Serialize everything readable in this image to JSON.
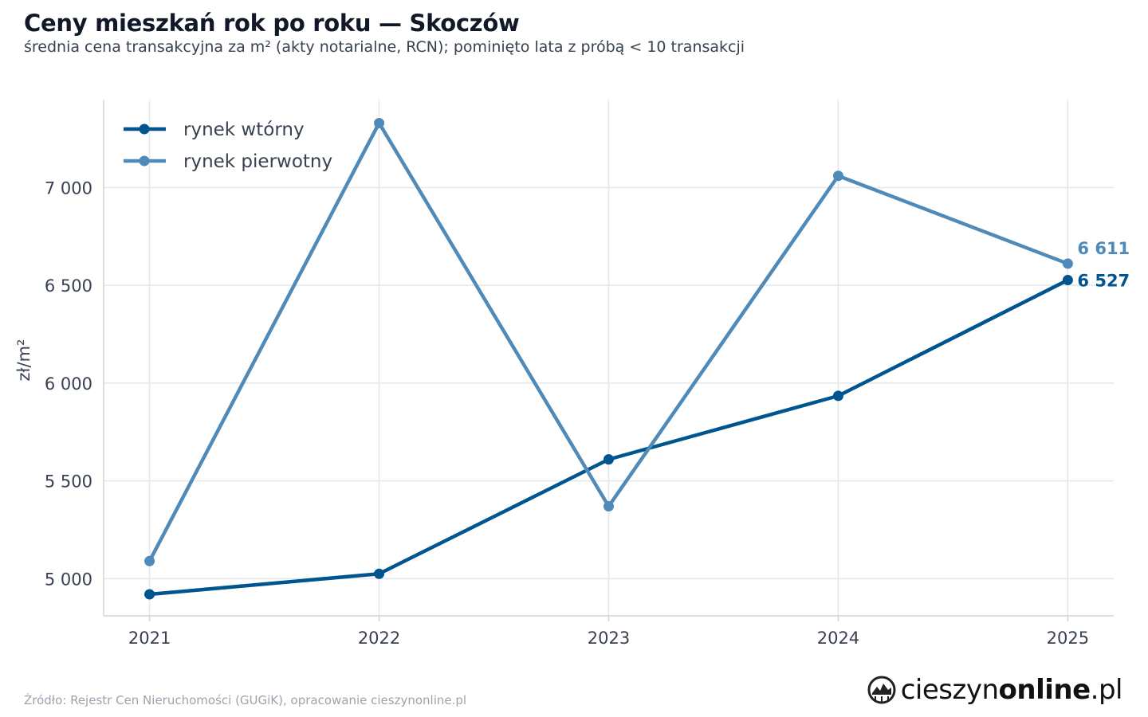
{
  "title": "Ceny mieszkań rok po roku — Skoczów",
  "subtitle": "średnia cena transakcyjna za m² (akty notarialne, RCN); pominięto lata z próbą < 10 transakcji",
  "source": "Źródło: Rejestr Cen Nieruchomości (GUGiK), opracowanie cieszynonline.pl",
  "brand": {
    "part1": "cieszyn",
    "part2": "online",
    "part3": ".pl",
    "logo_icon": "globe-logo-icon"
  },
  "chart_data": {
    "type": "line",
    "x": [
      2021,
      2022,
      2023,
      2024,
      2025
    ],
    "x_tick_labels": [
      "2021",
      "2022",
      "2023",
      "2024",
      "2025"
    ],
    "ylabel": "zł/m²",
    "ylim": [
      4810,
      7450
    ],
    "y_ticks": [
      5000,
      5500,
      6000,
      6500,
      7000
    ],
    "y_tick_labels": [
      "5 000",
      "5 500",
      "6 000",
      "6 500",
      "7 000"
    ],
    "grid": true,
    "legend_position": "top-left",
    "series": [
      {
        "name": "rynek wtórny",
        "color": "#00558f",
        "values": [
          4920,
          5025,
          5610,
          5935,
          6527
        ],
        "end_label": "6 527"
      },
      {
        "name": "rynek pierwotny",
        "color": "#4f8ab8",
        "values": [
          5090,
          7330,
          5370,
          7060,
          6611
        ],
        "end_label": "6 611"
      }
    ]
  }
}
